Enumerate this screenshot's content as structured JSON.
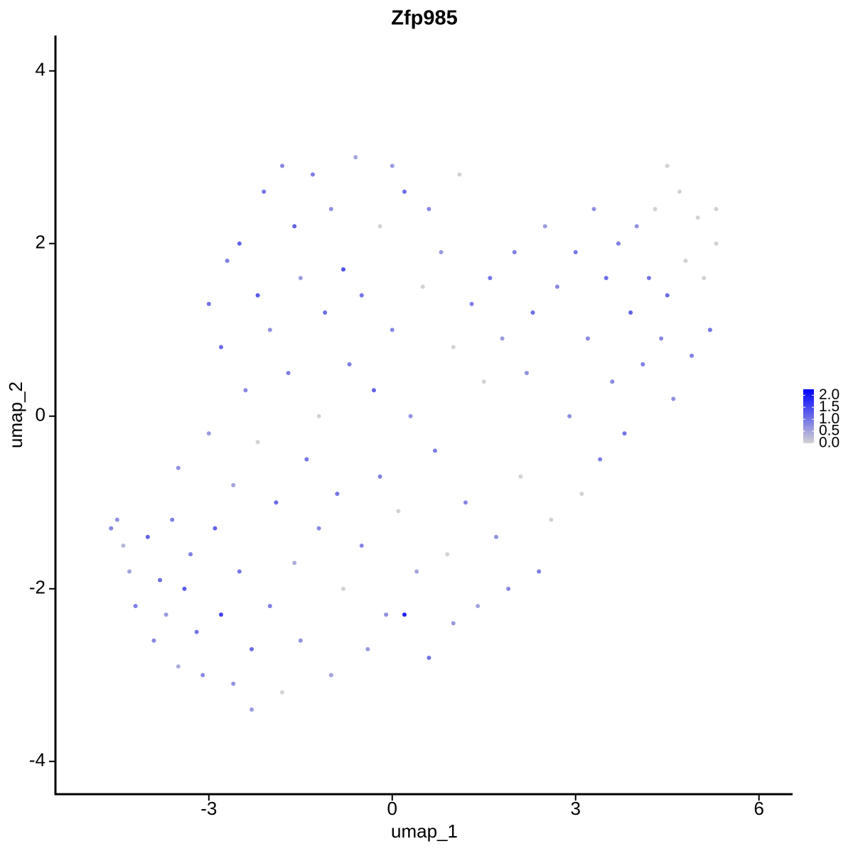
{
  "chart_data": {
    "type": "scatter",
    "title": "Zfp985",
    "x_label": "umap_1",
    "y_label": "umap_2",
    "xlim": [
      -5.51,
      6.55
    ],
    "ylim": [
      -4.38,
      4.41
    ],
    "xticks": [
      -3,
      0,
      3,
      6
    ],
    "yticks": [
      -4,
      -2,
      0,
      2,
      4
    ],
    "x": [
      -4.6,
      -4.5,
      -4.4,
      -4.3,
      -4.2,
      -4.0,
      -3.9,
      -3.8,
      -3.7,
      -3.6,
      -3.5,
      -3.5,
      -3.4,
      -3.3,
      -3.2,
      -3.1,
      -3.0,
      -3.0,
      -2.9,
      -2.8,
      -2.8,
      -2.7,
      -2.6,
      -2.6,
      -2.5,
      -2.5,
      -2.4,
      -2.3,
      -2.3,
      -2.2,
      -2.2,
      -2.1,
      -2.0,
      -2.0,
      -1.9,
      -1.8,
      -1.8,
      -1.7,
      -1.6,
      -1.6,
      -1.5,
      -1.5,
      -1.4,
      -1.3,
      -1.2,
      -1.2,
      -1.1,
      -1.0,
      -1.0,
      -0.9,
      -0.8,
      -0.8,
      -0.7,
      -0.6,
      -0.5,
      -0.5,
      -0.4,
      -0.3,
      -0.2,
      -0.2,
      -0.1,
      0.0,
      0.0,
      0.1,
      0.2,
      0.2,
      0.3,
      0.4,
      0.5,
      0.6,
      0.6,
      0.7,
      0.8,
      0.9,
      1.0,
      1.0,
      1.1,
      1.2,
      1.3,
      1.4,
      1.5,
      1.6,
      1.7,
      1.8,
      1.9,
      2.0,
      2.1,
      2.2,
      2.3,
      2.4,
      2.5,
      2.6,
      2.7,
      2.9,
      3.0,
      3.1,
      3.2,
      3.3,
      3.4,
      3.5,
      3.6,
      3.7,
      3.8,
      3.9,
      4.0,
      4.1,
      4.2,
      4.3,
      4.4,
      4.5,
      4.5,
      4.6,
      4.7,
      4.8,
      4.9,
      5.0,
      5.1,
      5.2,
      5.3,
      5.3
    ],
    "y": [
      -1.3,
      -1.2,
      -1.5,
      -1.8,
      -2.2,
      -1.4,
      -2.6,
      -1.9,
      -2.3,
      -1.2,
      -2.9,
      -0.6,
      -2.0,
      -1.6,
      -2.5,
      -3.0,
      -0.2,
      1.3,
      -1.3,
      -2.3,
      0.8,
      1.8,
      -3.1,
      -0.8,
      -1.8,
      2.0,
      0.3,
      -2.7,
      -3.4,
      1.4,
      -0.3,
      2.6,
      -2.2,
      1.0,
      -1.0,
      2.9,
      -3.2,
      0.5,
      -1.7,
      2.2,
      1.6,
      -2.6,
      -0.5,
      2.8,
      0.0,
      -1.3,
      1.2,
      -3.0,
      2.4,
      -0.9,
      1.7,
      -2.0,
      0.6,
      3.0,
      -1.5,
      1.4,
      -2.7,
      0.3,
      2.2,
      -0.7,
      -2.3,
      1.0,
      2.9,
      -1.1,
      -2.3,
      2.6,
      0.0,
      -1.8,
      1.5,
      -2.8,
      2.4,
      -0.4,
      1.9,
      -1.6,
      -2.4,
      0.8,
      2.8,
      -1.0,
      1.3,
      -2.2,
      0.4,
      1.6,
      -1.4,
      0.9,
      -2.0,
      1.9,
      -0.7,
      0.5,
      1.2,
      -1.8,
      2.2,
      -1.2,
      1.5,
      0.0,
      1.9,
      -0.9,
      0.9,
      2.4,
      -0.5,
      1.6,
      0.4,
      2.0,
      -0.2,
      1.2,
      2.2,
      0.6,
      1.6,
      2.4,
      0.9,
      2.9,
      1.4,
      0.2,
      2.6,
      1.8,
      0.7,
      2.3,
      1.6,
      1.0,
      2.0,
      2.4
    ],
    "values": [
      0.8,
      0.7,
      0.3,
      0.5,
      0.9,
      1.2,
      0.8,
      1.1,
      0.6,
      0.9,
      0.4,
      0.7,
      1.3,
      0.9,
      1.0,
      0.8,
      0.6,
      1.0,
      1.2,
      1.5,
      1.1,
      0.9,
      0.7,
      0.5,
      1.0,
      1.2,
      0.8,
      1.1,
      0.6,
      1.3,
      0.0,
      1.0,
      0.9,
      0.7,
      1.1,
      0.8,
      0.0,
      0.9,
      0.4,
      1.2,
      0.6,
      0.7,
      1.0,
      0.9,
      0.0,
      0.8,
      1.1,
      0.5,
      0.7,
      1.0,
      1.4,
      0.0,
      0.9,
      0.5,
      0.8,
      1.0,
      0.6,
      1.2,
      0.0,
      0.9,
      0.7,
      0.8,
      0.6,
      0.0,
      1.9,
      1.1,
      0.7,
      0.5,
      0.0,
      1.0,
      0.8,
      0.9,
      0.6,
      0.0,
      0.6,
      0.0,
      0.0,
      0.8,
      0.9,
      0.5,
      0.0,
      1.0,
      0.7,
      0.6,
      0.8,
      0.9,
      0.0,
      0.7,
      1.1,
      0.9,
      0.6,
      0.0,
      0.8,
      0.7,
      1.0,
      0.0,
      0.8,
      0.7,
      0.9,
      1.1,
      0.8,
      0.9,
      1.0,
      1.2,
      0.7,
      0.9,
      1.0,
      0.0,
      0.8,
      0.0,
      1.1,
      0.7,
      0.0,
      0.0,
      0.9,
      0.0,
      0.0,
      1.0,
      0.0,
      0.0
    ],
    "colorbar": {
      "lim": [
        0,
        2.25
      ],
      "low_color": "#d3d3d3",
      "high_color": "#0000ff",
      "ticks": [
        {
          "value": 0,
          "label": "0.0"
        },
        {
          "value": 0.5,
          "label": "0.5"
        },
        {
          "value": 1,
          "label": "1.0"
        },
        {
          "value": 1.5,
          "label": "1.5"
        },
        {
          "value": 2,
          "label": "2.0"
        }
      ]
    }
  }
}
